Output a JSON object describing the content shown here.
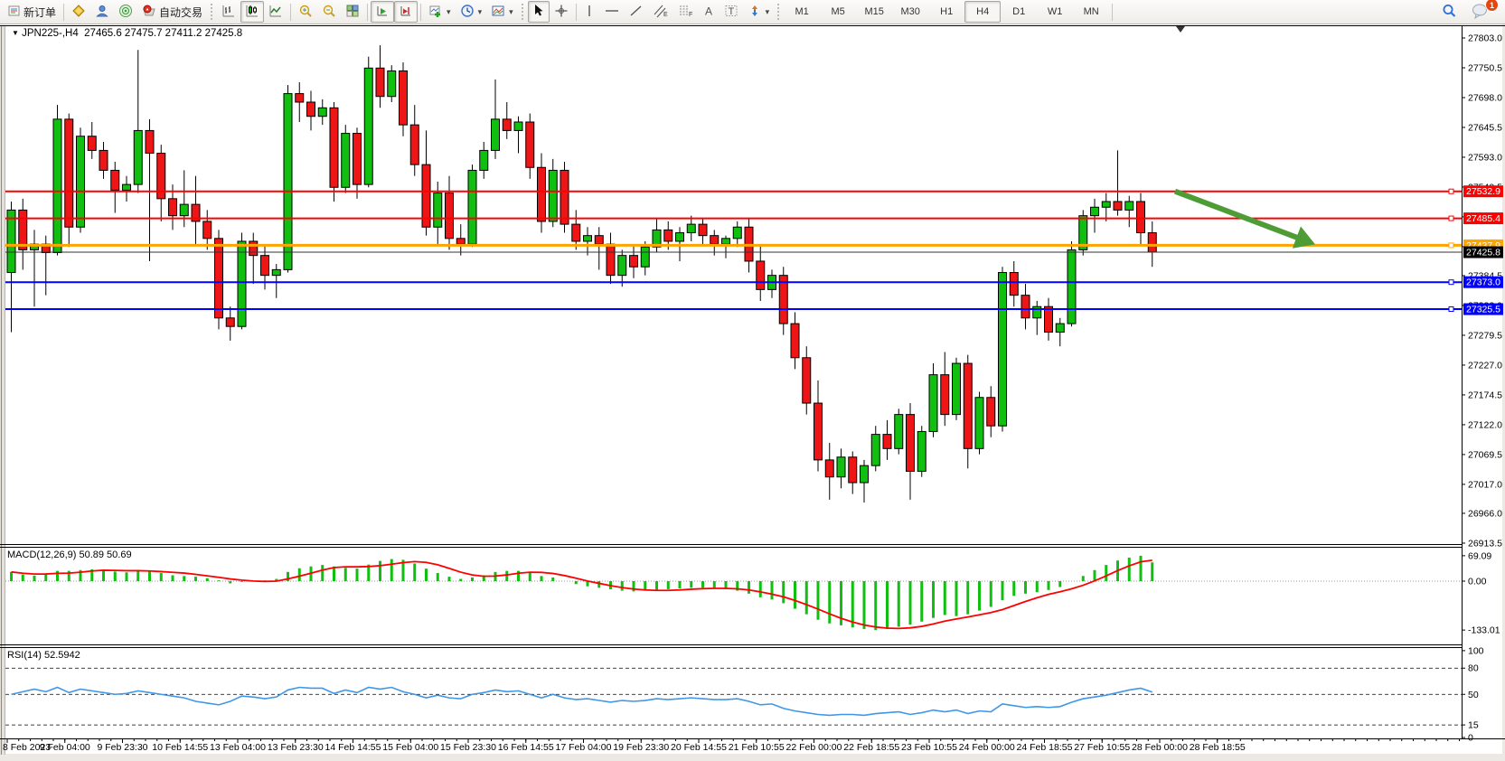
{
  "toolbar": {
    "new_order_label": "新订单",
    "auto_trading_label": "自动交易",
    "timeframes": [
      "M1",
      "M5",
      "M15",
      "M30",
      "H1",
      "H4",
      "D1",
      "W1",
      "MN"
    ],
    "selected_timeframe": "H4",
    "notification_count": "1"
  },
  "chart": {
    "symbol_period": "JPN225-,H4",
    "ohlc_text": "27465.6 27475.7 27411.2 27425.8",
    "dropdown_glyph": "▼",
    "price_axis_labels": [
      "27803.0",
      "27750.5",
      "27698.0",
      "27645.5",
      "27593.0",
      "27540.5",
      "27488.0",
      "27435.5",
      "27384.5",
      "27332.0",
      "27279.5",
      "27227.0",
      "27174.5",
      "27122.0",
      "27069.5",
      "27017.0",
      "26966.0",
      "26913.5"
    ],
    "time_axis_labels": [
      "8 Feb 2023",
      "9 Feb 04:00",
      "9 Feb 23:30",
      "10 Feb 14:55",
      "13 Feb 04:00",
      "13 Feb 23:30",
      "14 Feb 14:55",
      "15 Feb 04:00",
      "15 Feb 23:30",
      "16 Feb 14:55",
      "17 Feb 04:00",
      "19 Feb 23:30",
      "20 Feb 14:55",
      "21 Feb 10:55",
      "22 Feb 00:00",
      "22 Feb 18:55",
      "23 Feb 10:55",
      "24 Feb 00:00",
      "24 Feb 18:55",
      "27 Feb 10:55",
      "28 Feb 00:00",
      "28 Feb 18:55"
    ],
    "horizontal_lines": [
      {
        "price": 27532.9,
        "label": "27532.9",
        "color": "#FF0000",
        "thickness": 2
      },
      {
        "price": 27485.4,
        "label": "27485.4",
        "color": "#FF0000",
        "thickness": 2
      },
      {
        "price": 27437.9,
        "label": "27437.9",
        "color": "#FFA500",
        "thickness": 3
      },
      {
        "price": 27373.0,
        "label": "27373.0",
        "color": "#0000FF",
        "thickness": 2
      },
      {
        "price": 27325.5,
        "label": "27325.5",
        "color": "#0000FF",
        "thickness": 2
      }
    ],
    "current_price": {
      "price": 27425.8,
      "label": "27425.8",
      "color": "#000000"
    },
    "colors": {
      "up_candle": "#10BF10",
      "down_candle": "#ED1515",
      "outline": "#000000",
      "macd_histogram": "#10BF10",
      "macd_signal": "#FF0000",
      "rsi_line": "#3E97E8",
      "arrow": "#4E9C35"
    }
  },
  "macd_panel": {
    "label": "MACD(12,26,9) 50.89 50.69",
    "axis_labels": [
      {
        "text": "69.09",
        "value": 69.09
      },
      {
        "text": "0.00",
        "value": 0
      },
      {
        "text": "-133.01",
        "value": -133.01
      }
    ]
  },
  "rsi_panel": {
    "label": "RSI(14) 52.5942",
    "axis_labels": [
      {
        "text": "100",
        "value": 100
      },
      {
        "text": "80",
        "value": 80
      },
      {
        "text": "50",
        "value": 50
      },
      {
        "text": "15",
        "value": 15
      },
      {
        "text": "0",
        "value": 0
      }
    ],
    "dashed_levels": [
      80,
      50,
      15
    ]
  },
  "chart_data": {
    "type": "candlestick",
    "symbol": "JPN225-",
    "period": "H4",
    "current_bar": {
      "open": 27465.6,
      "high": 27475.7,
      "low": 27411.2,
      "close": 27425.8
    },
    "y_axis_range": [
      26913.5,
      27803.0
    ],
    "candles_ohlc": [
      [
        27390,
        27515,
        27285,
        27500
      ],
      [
        27500,
        27520,
        27395,
        27430
      ],
      [
        27430,
        27465,
        27330,
        27440
      ],
      [
        27440,
        27455,
        27350,
        27425
      ],
      [
        27425,
        27685,
        27420,
        27660
      ],
      [
        27660,
        27670,
        27435,
        27470
      ],
      [
        27470,
        27645,
        27460,
        27630
      ],
      [
        27630,
        27655,
        27590,
        27605
      ],
      [
        27605,
        27620,
        27555,
        27570
      ],
      [
        27570,
        27585,
        27495,
        27535
      ],
      [
        27535,
        27560,
        27515,
        27545
      ],
      [
        27545,
        27782,
        27530,
        27640
      ],
      [
        27640,
        27660,
        27410,
        27600
      ],
      [
        27600,
        27615,
        27480,
        27520
      ],
      [
        27520,
        27545,
        27465,
        27490
      ],
      [
        27490,
        27570,
        27470,
        27510
      ],
      [
        27510,
        27560,
        27440,
        27480
      ],
      [
        27480,
        27500,
        27430,
        27450
      ],
      [
        27450,
        27465,
        27290,
        27310
      ],
      [
        27310,
        27330,
        27270,
        27295
      ],
      [
        27295,
        27460,
        27290,
        27445
      ],
      [
        27445,
        27460,
        27370,
        27420
      ],
      [
        27420,
        27440,
        27360,
        27385
      ],
      [
        27385,
        27405,
        27345,
        27395
      ],
      [
        27395,
        27720,
        27390,
        27705
      ],
      [
        27705,
        27725,
        27655,
        27690
      ],
      [
        27690,
        27710,
        27640,
        27665
      ],
      [
        27665,
        27695,
        27650,
        27680
      ],
      [
        27680,
        27690,
        27515,
        27540
      ],
      [
        27540,
        27650,
        27530,
        27635
      ],
      [
        27635,
        27645,
        27520,
        27545
      ],
      [
        27545,
        27770,
        27540,
        27750
      ],
      [
        27750,
        27790,
        27680,
        27700
      ],
      [
        27700,
        27755,
        27690,
        27745
      ],
      [
        27745,
        27760,
        27630,
        27650
      ],
      [
        27650,
        27685,
        27560,
        27580
      ],
      [
        27580,
        27640,
        27455,
        27470
      ],
      [
        27470,
        27550,
        27440,
        27530
      ],
      [
        27530,
        27560,
        27430,
        27450
      ],
      [
        27450,
        27475,
        27420,
        27440
      ],
      [
        27440,
        27580,
        27435,
        27570
      ],
      [
        27570,
        27620,
        27555,
        27605
      ],
      [
        27605,
        27730,
        27590,
        27660
      ],
      [
        27660,
        27690,
        27625,
        27640
      ],
      [
        27640,
        27665,
        27600,
        27655
      ],
      [
        27655,
        27670,
        27555,
        27575
      ],
      [
        27575,
        27600,
        27460,
        27480
      ],
      [
        27480,
        27590,
        27470,
        27570
      ],
      [
        27570,
        27585,
        27460,
        27475
      ],
      [
        27475,
        27500,
        27430,
        27445
      ],
      [
        27445,
        27470,
        27420,
        27455
      ],
      [
        27455,
        27470,
        27395,
        27440
      ],
      [
        27440,
        27460,
        27370,
        27385
      ],
      [
        27385,
        27430,
        27365,
        27420
      ],
      [
        27420,
        27440,
        27380,
        27400
      ],
      [
        27400,
        27445,
        27385,
        27435
      ],
      [
        27435,
        27485,
        27425,
        27465
      ],
      [
        27465,
        27480,
        27430,
        27445
      ],
      [
        27445,
        27470,
        27410,
        27460
      ],
      [
        27460,
        27490,
        27445,
        27475
      ],
      [
        27475,
        27485,
        27440,
        27455
      ],
      [
        27455,
        27465,
        27420,
        27440
      ],
      [
        27440,
        27455,
        27415,
        27450
      ],
      [
        27450,
        27480,
        27435,
        27470
      ],
      [
        27470,
        27485,
        27390,
        27410
      ],
      [
        27410,
        27440,
        27340,
        27360
      ],
      [
        27360,
        27395,
        27345,
        27385
      ],
      [
        27385,
        27400,
        27280,
        27300
      ],
      [
        27300,
        27320,
        27220,
        27240
      ],
      [
        27240,
        27260,
        27140,
        27160
      ],
      [
        27160,
        27200,
        27040,
        27060
      ],
      [
        27060,
        27090,
        26990,
        27030
      ],
      [
        27030,
        27080,
        27010,
        27065
      ],
      [
        27065,
        27075,
        27000,
        27020
      ],
      [
        27020,
        27060,
        26985,
        27050
      ],
      [
        27050,
        27120,
        27040,
        27105
      ],
      [
        27105,
        27130,
        27060,
        27080
      ],
      [
        27080,
        27150,
        27070,
        27140
      ],
      [
        27140,
        27160,
        26990,
        27040
      ],
      [
        27040,
        27120,
        27030,
        27110
      ],
      [
        27110,
        27230,
        27100,
        27210
      ],
      [
        27210,
        27250,
        27120,
        27140
      ],
      [
        27140,
        27240,
        27130,
        27230
      ],
      [
        27230,
        27245,
        27045,
        27080
      ],
      [
        27080,
        27180,
        27070,
        27170
      ],
      [
        27170,
        27190,
        27100,
        27120
      ],
      [
        27120,
        27400,
        27110,
        27390
      ],
      [
        27390,
        27410,
        27330,
        27350
      ],
      [
        27350,
        27370,
        27290,
        27310
      ],
      [
        27310,
        27340,
        27280,
        27330
      ],
      [
        27330,
        27345,
        27270,
        27285
      ],
      [
        27285,
        27310,
        27260,
        27300
      ],
      [
        27300,
        27445,
        27295,
        27430
      ],
      [
        27430,
        27500,
        27420,
        27490
      ],
      [
        27490,
        27520,
        27460,
        27505
      ],
      [
        27505,
        27530,
        27480,
        27515
      ],
      [
        27515,
        27605,
        27490,
        27500
      ],
      [
        27500,
        27525,
        27470,
        27515
      ],
      [
        27515,
        27530,
        27440,
        27460
      ],
      [
        27460,
        27480,
        27400,
        27426
      ]
    ],
    "macd_histogram": [
      25,
      18,
      15,
      20,
      28,
      28,
      30,
      32,
      30,
      26,
      24,
      30,
      28,
      22,
      16,
      14,
      12,
      8,
      2,
      -6,
      -2,
      0,
      2,
      6,
      25,
      35,
      40,
      44,
      40,
      36,
      34,
      45,
      55,
      60,
      58,
      48,
      34,
      22,
      12,
      6,
      10,
      16,
      25,
      28,
      28,
      24,
      14,
      10,
      0,
      -8,
      -14,
      -18,
      -22,
      -26,
      -28,
      -26,
      -24,
      -22,
      -20,
      -18,
      -18,
      -20,
      -22,
      -26,
      -34,
      -44,
      -50,
      -60,
      -75,
      -90,
      -105,
      -115,
      -120,
      -126,
      -130,
      -133,
      -130,
      -124,
      -118,
      -110,
      -100,
      -92,
      -95,
      -90,
      -80,
      -70,
      -52,
      -40,
      -34,
      -30,
      -24,
      -16,
      0,
      14,
      30,
      44,
      56,
      64,
      69,
      51
    ],
    "rsi_values": [
      50,
      53,
      56,
      53,
      58,
      52,
      56,
      54,
      52,
      50,
      51,
      54,
      52,
      50,
      48,
      46,
      42,
      40,
      38,
      42,
      48,
      47,
      45,
      47,
      55,
      58,
      57,
      57,
      51,
      55,
      52,
      58,
      56,
      58,
      53,
      50,
      46,
      49,
      46,
      45,
      50,
      52,
      55,
      53,
      54,
      50,
      46,
      50,
      46,
      44,
      45,
      43,
      41,
      43,
      42,
      43,
      45,
      44,
      45,
      46,
      45,
      44,
      44,
      45,
      42,
      38,
      39,
      34,
      31,
      29,
      27,
      26,
      27,
      27,
      26,
      28,
      29,
      30,
      27,
      29,
      32,
      30,
      32,
      28,
      31,
      30,
      39,
      37,
      35,
      36,
      35,
      36,
      41,
      45,
      47,
      49,
      52,
      55,
      57,
      52.6
    ],
    "annotations": [
      {
        "type": "arrow",
        "direction": "down-right",
        "from_price": 27532.9,
        "to_price": 27437.9,
        "color": "#4E9C35"
      }
    ]
  }
}
